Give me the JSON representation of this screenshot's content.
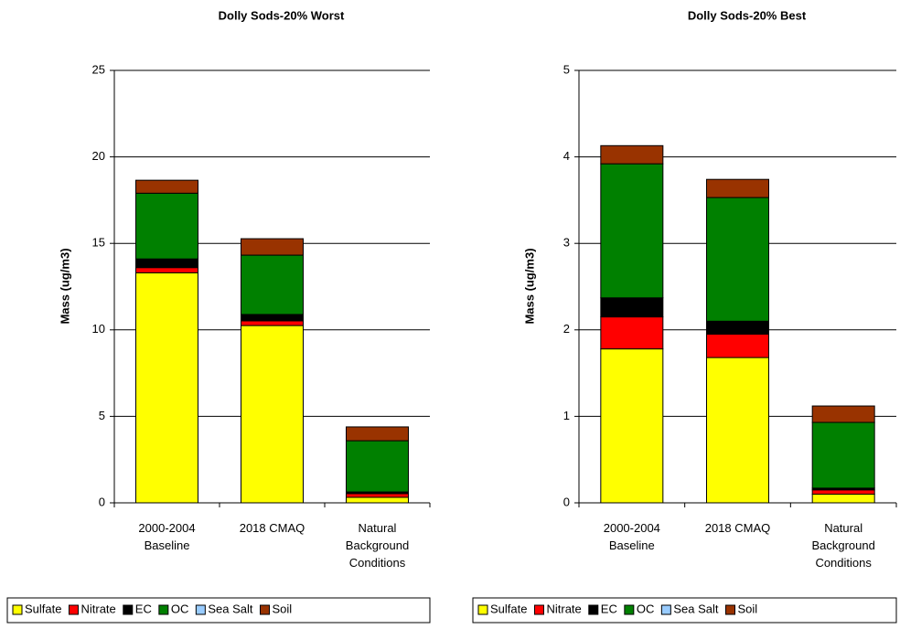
{
  "chart_data": [
    {
      "type": "stacked_bar",
      "title": "Dolly Sods-20% Worst",
      "ylabel": "Mass (ug/m3)",
      "categories": [
        "2000-2004 Baseline",
        "2018 CMAQ",
        "Natural Background Conditions"
      ],
      "series": [
        {
          "name": "Sulfate",
          "color": "#ffff00",
          "values": [
            13.3,
            10.25,
            0.32
          ]
        },
        {
          "name": "Nitrate",
          "color": "#ff0000",
          "values": [
            0.3,
            0.27,
            0.21
          ]
        },
        {
          "name": "EC",
          "color": "#000000",
          "values": [
            0.5,
            0.37,
            0.1
          ]
        },
        {
          "name": "OC",
          "color": "#008000",
          "values": [
            3.8,
            3.43,
            2.96
          ]
        },
        {
          "name": "Sea Salt",
          "color": "#99ccff",
          "values": [
            0,
            0,
            0
          ]
        },
        {
          "name": "Soil",
          "color": "#993300",
          "values": [
            0.75,
            0.95,
            0.8
          ]
        }
      ],
      "ylim": [
        0,
        25
      ],
      "yticks": [
        0,
        5,
        10,
        15,
        20,
        25
      ],
      "grid": true,
      "legend": "bottom"
    },
    {
      "type": "stacked_bar",
      "title": "Dolly Sods-20% Best",
      "ylabel": "Mass (ug/m3)",
      "categories": [
        "2000-2004 Baseline",
        "2018 CMAQ",
        "Natural Background Conditions"
      ],
      "series": [
        {
          "name": "Sulfate",
          "color": "#ffff00",
          "values": [
            1.78,
            1.68,
            0.1
          ]
        },
        {
          "name": "Nitrate",
          "color": "#ff0000",
          "values": [
            0.37,
            0.27,
            0.05
          ]
        },
        {
          "name": "EC",
          "color": "#000000",
          "values": [
            0.22,
            0.15,
            0.02
          ]
        },
        {
          "name": "OC",
          "color": "#008000",
          "values": [
            1.55,
            1.43,
            0.76
          ]
        },
        {
          "name": "Sea Salt",
          "color": "#99ccff",
          "values": [
            0,
            0,
            0
          ]
        },
        {
          "name": "Soil",
          "color": "#993300",
          "values": [
            0.21,
            0.21,
            0.19
          ]
        }
      ],
      "ylim": [
        0,
        5
      ],
      "yticks": [
        0,
        1,
        2,
        3,
        4,
        5
      ],
      "grid": true,
      "legend": "bottom"
    }
  ]
}
